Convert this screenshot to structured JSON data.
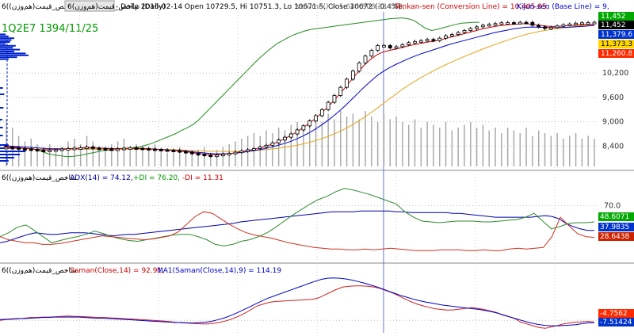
{
  "header": {
    "tab": "6(شاخص_قیمت(هم‌وزن (Daily)",
    "prefix": "6(شاخص_قیمت(هم‌وزن)",
    "ohlc": "- Daily 2016-02-14 Open 10729.5, Hi 10751.3, Lo 10671.5, Close 10672 (-0.4%)",
    "volume": "Volume() = 1,645,808,384.00,",
    "tenkan": "Tenkan-sen (Conversion Line) = 10,405.85,",
    "kijun": "Kijun-sen (Base Line) = 9,"
  },
  "watermark": "1Q2E7 1394/11/25",
  "panel2": {
    "prefix": "6(شاخص_قیمت(هم‌وزن)",
    "adx": "- ADX(14) = 74.12,",
    "pdi": "+DI = 76.20,",
    "mdi": "-DI = 11.31"
  },
  "panel3": {
    "prefix": "6(شاخص_قیمت(هم‌وزن)",
    "saman": "- Saman(Close,14) = 92.91,",
    "ma": "MA1(Saman(Close,14),9) = 114.19"
  },
  "price_axis": {
    "ticks": [
      "10,200",
      "9,600",
      "9,000",
      "8,400"
    ],
    "badges": [
      "11,452",
      "11,452",
      "11,379.6",
      "11,373.3",
      "11,260.8"
    ],
    "colors": [
      "#00aa00",
      "#000000",
      "#0033cc",
      "#ffd700",
      "#ff2a00"
    ]
  },
  "adx_axis": {
    "ticks": [
      "70.0"
    ],
    "badges": [
      "48.6071",
      "37.9835",
      "28.6438"
    ],
    "colors": [
      "#00aa00",
      "#0033cc",
      "#cc2200"
    ]
  },
  "saman_axis": {
    "badges": [
      "-4.7562",
      "-7.51424"
    ],
    "colors": [
      "#ff2a00",
      "#0033cc"
    ]
  },
  "chart_data": [
    {
      "type": "candlestick",
      "title": "6(شاخص_قیمت(هم‌وزن) Daily",
      "ylim": [
        7900,
        11650
      ],
      "y_ticks": [
        8400,
        9000,
        9600,
        10200
      ],
      "series": [
        {
          "name": "Close",
          "values": [
            8370,
            8360,
            8340,
            8330,
            8320,
            8300,
            8290,
            8300,
            8310,
            8330,
            8340,
            8350,
            8360,
            8380,
            8350,
            8340,
            8330,
            8320,
            8330,
            8350,
            8360,
            8350,
            8340,
            8330,
            8320,
            8310,
            8300,
            8290,
            8270,
            8250,
            8220,
            8200,
            8180,
            8160,
            8180,
            8200,
            8220,
            8250,
            8280,
            8310,
            8340,
            8380,
            8420,
            8480,
            8550,
            8620,
            8700,
            8800,
            8900,
            9020,
            9150,
            9300,
            9480,
            9650,
            9850,
            10050,
            10250,
            10450,
            10620,
            10760,
            10880,
            10880,
            10820,
            10850,
            10900,
            10950,
            10980,
            11000,
            11030,
            11000,
            11060,
            11120,
            11150,
            11200,
            11250,
            11300,
            11340,
            11380,
            11400,
            11420,
            11440,
            11445,
            11440,
            11452,
            11450,
            11380,
            11340,
            11300,
            11330,
            11360,
            11390,
            11410,
            11430,
            11440,
            11445,
            11452
          ]
        },
        {
          "name": "Tenkan-sen (Conversion Line)",
          "values": [
            8390,
            8380,
            8370,
            8350,
            8340,
            8320,
            8310,
            8305,
            8310,
            8320,
            8330,
            8340,
            8350,
            8360,
            8360,
            8355,
            8345,
            8335,
            8335,
            8340,
            8350,
            8350,
            8345,
            8335,
            8325,
            8315,
            8305,
            8295,
            8280,
            8265,
            8245,
            8225,
            8205,
            8190,
            8185,
            8195,
            8210,
            8230,
            8255,
            8285,
            8315,
            8350,
            8390,
            8440,
            8500,
            8570,
            8650,
            8740,
            8840,
            8950,
            9070,
            9200,
            9350,
            9510,
            9680,
            9860,
            10050,
            10230,
            10400,
            10540,
            10650,
            10720,
            10760,
            10790,
            10830,
            10870,
            10900,
            10930,
            10960,
            10980,
            11010,
            11050,
            11090,
            11130,
            11170,
            11210,
            11250,
            11290,
            11320,
            11350,
            11370,
            11390,
            11400,
            11410,
            11420,
            11400,
            11380,
            11360,
            11350,
            11350,
            11360,
            11370,
            11380,
            11390,
            11400,
            11406
          ]
        },
        {
          "name": "Kijun-sen (Base Line)",
          "values": [
            8410,
            8400,
            8390,
            8380,
            8370,
            8360,
            8350,
            8340,
            8335,
            8335,
            8335,
            8340,
            8345,
            8350,
            8355,
            8355,
            8350,
            8345,
            8340,
            8340,
            8345,
            8345,
            8340,
            8335,
            8330,
            8320,
            8310,
            8300,
            8290,
            8280,
            8265,
            8250,
            8235,
            8220,
            8210,
            8210,
            8215,
            8225,
            8240,
            8260,
            8285,
            8310,
            8340,
            8375,
            8415,
            8460,
            8510,
            8570,
            8640,
            8720,
            8810,
            8910,
            9020,
            9140,
            9270,
            9410,
            9560,
            9710,
            9860,
            10000,
            10130,
            10240,
            10330,
            10410,
            10480,
            10550,
            10610,
            10670,
            10720,
            10770,
            10820,
            10870,
            10920,
            10960,
            11000,
            11040,
            11080,
            11120,
            11160,
            11200,
            11230,
            11260,
            11290,
            11310,
            11330,
            11335,
            11330,
            11325,
            11320,
            11320,
            11325,
            11330,
            11340,
            11350,
            11360,
            11373
          ]
        },
        {
          "name": "MA",
          "values": [
            8350,
            8345,
            8340,
            8335,
            8330,
            8325,
            8320,
            8318,
            8316,
            8315,
            8315,
            8316,
            8318,
            8320,
            8322,
            8323,
            8323,
            8322,
            8320,
            8320,
            8321,
            8322,
            8322,
            8321,
            8320,
            8318,
            8315,
            8312,
            8308,
            8303,
            8297,
            8290,
            8283,
            8276,
            8272,
            8270,
            8270,
            8272,
            8276,
            8282,
            8290,
            8300,
            8312,
            8327,
            8345,
            8366,
            8390,
            8418,
            8450,
            8488,
            8530,
            8578,
            8632,
            8692,
            8760,
            8836,
            8920,
            9012,
            9112,
            9218,
            9330,
            9446,
            9562,
            9676,
            9786,
            9890,
            9988,
            10080,
            10166,
            10248,
            10326,
            10400,
            10470,
            10538,
            10604,
            10668,
            10730,
            10790,
            10848,
            10904,
            10958,
            11010,
            11060,
            11108,
            11154,
            11190,
            11222,
            11250,
            11274,
            11296,
            11318,
            11338,
            11356,
            11372,
            11386,
            11398
          ]
        },
        {
          "name": "Volume()",
          "values": [
            0.85,
            0.7,
            0.55,
            0.45,
            0.5,
            0.4,
            0.35,
            0.4,
            0.3,
            0.35,
            0.45,
            0.5,
            0.4,
            0.55,
            0.45,
            0.35,
            0.3,
            0.4,
            0.45,
            0.5,
            0.35,
            0.4,
            0.3,
            0.35,
            0.4,
            0.3,
            0.25,
            0.3,
            0.35,
            0.3,
            0.25,
            0.3,
            0.35,
            0.25,
            0.3,
            0.35,
            0.4,
            0.45,
            0.5,
            0.55,
            0.6,
            0.55,
            0.65,
            0.6,
            0.7,
            0.65,
            0.75,
            0.8,
            0.7,
            0.85,
            0.9,
            0.8,
            0.95,
            0.85,
            1.0,
            0.9,
            0.95,
            0.85,
            1.0,
            0.9,
            0.8,
            0.95,
            0.85,
            0.9,
            0.8,
            0.75,
            0.85,
            0.7,
            0.8,
            0.75,
            0.7,
            0.8,
            0.65,
            0.7,
            0.75,
            0.8,
            0.7,
            0.75,
            0.65,
            0.7,
            0.6,
            0.7,
            0.65,
            0.6,
            0.7,
            0.55,
            0.65,
            0.6,
            0.55,
            0.6,
            0.5,
            0.55,
            0.6,
            0.5,
            0.55,
            0.5
          ]
        },
        {
          "name": "Chikou",
          "values": [
            8350,
            8300,
            8250,
            8200,
            8180,
            8160,
            8140,
            8150,
            8170,
            8200,
            8230,
            8260,
            8290,
            8300,
            8310,
            8330,
            8350,
            8360,
            8380,
            8420,
            8460,
            8520,
            8580,
            8640,
            8700,
            8780,
            8850,
            8930,
            9050,
            9200,
            9350,
            9500,
            9650,
            9800,
            9950,
            10100,
            10250,
            10400,
            10550,
            10680,
            10800,
            10920,
            11000,
            11080,
            11150,
            11200,
            11250,
            11280,
            11300,
            11320,
            11340,
            11360,
            11380,
            11400,
            11420,
            11440,
            11460,
            11480,
            11500,
            11520,
            11540,
            11550,
            11560,
            11540,
            11500,
            11400,
            11300,
            11250,
            11280,
            11320,
            11360,
            11400,
            11430,
            11440,
            11450,
            11452
          ]
        }
      ]
    },
    {
      "type": "line",
      "title": "ADX(14)",
      "ylim": [
        0,
        100
      ],
      "y_ticks": [
        70
      ],
      "series": [
        {
          "name": "ADX(14)",
          "values": [
            22,
            24,
            27,
            30,
            33,
            35,
            34,
            33,
            33,
            34,
            35,
            35,
            35,
            34,
            33,
            32,
            31,
            32,
            33,
            33,
            34,
            35,
            36,
            37,
            38,
            39,
            40,
            41,
            42,
            43,
            44,
            45,
            46,
            47,
            49,
            50,
            51,
            52,
            53,
            54,
            55,
            56,
            57,
            58,
            59,
            60,
            61,
            62,
            62,
            62,
            62,
            63,
            63,
            63,
            63,
            63,
            62,
            62,
            61,
            61,
            61,
            61,
            61,
            61,
            60,
            60,
            59,
            58,
            57,
            56,
            55,
            55,
            55,
            55,
            55,
            55,
            56,
            57,
            56,
            53,
            47,
            43,
            40,
            38,
            38
          ]
        },
        {
          "name": "+DI",
          "values": [
            30,
            35,
            42,
            45,
            38,
            30,
            22,
            25,
            28,
            30,
            33,
            37,
            34,
            30,
            27,
            25,
            24,
            26,
            28,
            30,
            32,
            33,
            33,
            30,
            26,
            20,
            18,
            20,
            24,
            26,
            30,
            35,
            42,
            50,
            58,
            65,
            72,
            78,
            82,
            88,
            92,
            90,
            87,
            84,
            80,
            76,
            72,
            62,
            55,
            50,
            49,
            48,
            49,
            50,
            50,
            50,
            49,
            49,
            50,
            51,
            52,
            55,
            60,
            50,
            40,
            43,
            47,
            48,
            48,
            49
          ]
        },
        {
          "name": "-DI",
          "values": [
            30,
            26,
            24,
            22,
            22,
            20,
            20,
            21,
            23,
            25,
            27,
            29,
            31,
            30,
            29,
            28,
            27,
            26,
            27,
            29,
            31,
            36,
            46,
            56,
            62,
            60,
            53,
            46,
            40,
            35,
            32,
            30,
            28,
            25,
            22,
            20,
            18,
            16,
            15,
            14,
            14,
            13,
            13,
            14,
            13,
            14,
            15,
            14,
            13,
            12,
            12,
            12,
            13,
            13,
            13,
            12,
            12,
            13,
            12,
            12,
            14,
            15,
            14,
            15,
            16,
            30,
            55,
            44,
            34,
            30,
            29
          ]
        }
      ]
    },
    {
      "type": "line",
      "title": "Saman(Close,14)",
      "series": [
        {
          "name": "Saman(Close,14)",
          "values": [
            0,
            2,
            3,
            4,
            6,
            8,
            8,
            9,
            9,
            10,
            11,
            12,
            11,
            11,
            10,
            9,
            8,
            8,
            7,
            6,
            5,
            4,
            3,
            2,
            1,
            0,
            -1,
            -2,
            -4,
            -6,
            -7,
            -8,
            -9,
            -10,
            -10,
            -8,
            -5,
            -1,
            5,
            12,
            20,
            30,
            40,
            45,
            50,
            52,
            53,
            54,
            55,
            56,
            57,
            58,
            62,
            70,
            78,
            86,
            92,
            94,
            95,
            95,
            94,
            92,
            88,
            82,
            76,
            68,
            60,
            52,
            45,
            40,
            36,
            32,
            30,
            28,
            29,
            31,
            33,
            35,
            33,
            30,
            26,
            22,
            15,
            10,
            5,
            -5,
            -10,
            -15,
            -20,
            -22,
            -18,
            -14,
            -10,
            -7,
            -5,
            -4,
            -3,
            -5
          ]
        },
        {
          "name": "MA1(Saman(Close,14),9)",
          "values": [
            2,
            3,
            4,
            5,
            5,
            6,
            7,
            8,
            8,
            9,
            9,
            9,
            9,
            9,
            8,
            7,
            6,
            6,
            5,
            4,
            3,
            2,
            1,
            0,
            -1,
            -2,
            -3,
            -4,
            -5,
            -6,
            -6,
            -7,
            -7,
            -6,
            -5,
            -2,
            2,
            7,
            13,
            20,
            28,
            36,
            44,
            52,
            60,
            66,
            72,
            78,
            84,
            90,
            96,
            102,
            108,
            113,
            116,
            117,
            116,
            114,
            111,
            107,
            103,
            98,
            93,
            87,
            81,
            75,
            69,
            64,
            59,
            55,
            51,
            48,
            45,
            42,
            40,
            38,
            36,
            34,
            32,
            30,
            27,
            24,
            20,
            15,
            10,
            5,
            0,
            -5,
            -9,
            -12,
            -14,
            -15,
            -15,
            -14,
            -13,
            -12,
            -9,
            -7,
            -6
          ]
        }
      ]
    }
  ]
}
